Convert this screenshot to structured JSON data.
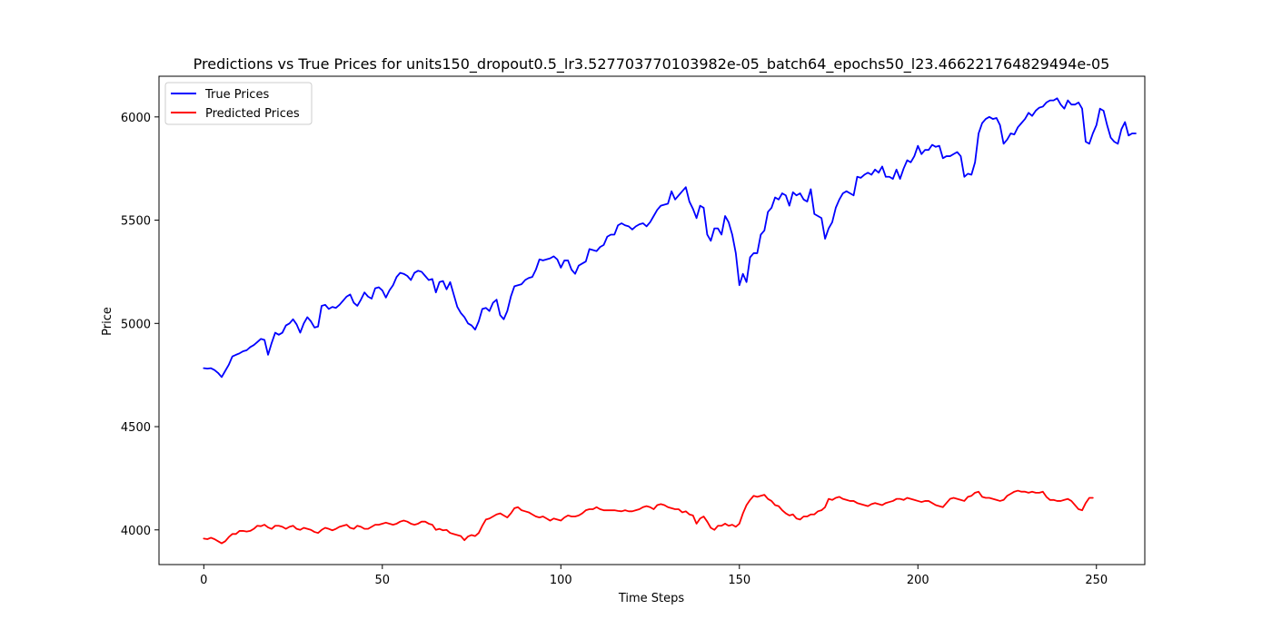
{
  "chart_data": {
    "type": "line",
    "title": "Predictions vs True Prices for units150_dropout0.5_lr3.527703770103982e-05_batch64_epochs50_l23.466221764829494e-05",
    "xlabel": "Time Steps",
    "ylabel": "Price",
    "xlim": [
      -12.55,
      263.55
    ],
    "ylim": [
      3832,
      6197
    ],
    "x_ticks": [
      0,
      50,
      100,
      150,
      200,
      250
    ],
    "y_ticks": [
      4000,
      4500,
      5000,
      5500,
      6000
    ],
    "grid": false,
    "legend_position": "upper left",
    "series": [
      {
        "name": "True Prices",
        "color": "#0000ff",
        "x_start": 0,
        "x_step": 1,
        "values": [
          4783,
          4781,
          4783,
          4774,
          4760,
          4740,
          4770,
          4800,
          4840,
          4848,
          4855,
          4865,
          4870,
          4885,
          4895,
          4910,
          4925,
          4920,
          4848,
          4905,
          4955,
          4945,
          4955,
          4990,
          5000,
          5020,
          4995,
          4955,
          5000,
          5030,
          5010,
          4980,
          4985,
          5085,
          5090,
          5070,
          5080,
          5075,
          5090,
          5110,
          5130,
          5140,
          5100,
          5085,
          5115,
          5150,
          5130,
          5120,
          5170,
          5175,
          5160,
          5125,
          5160,
          5185,
          5225,
          5245,
          5240,
          5230,
          5210,
          5245,
          5255,
          5250,
          5230,
          5210,
          5215,
          5150,
          5200,
          5205,
          5165,
          5200,
          5140,
          5080,
          5050,
          5030,
          5000,
          4990,
          4970,
          5010,
          5070,
          5075,
          5060,
          5100,
          5115,
          5040,
          5020,
          5060,
          5130,
          5180,
          5185,
          5190,
          5210,
          5220,
          5225,
          5260,
          5310,
          5305,
          5310,
          5315,
          5325,
          5310,
          5270,
          5305,
          5305,
          5260,
          5240,
          5280,
          5290,
          5300,
          5360,
          5355,
          5350,
          5370,
          5380,
          5420,
          5430,
          5430,
          5475,
          5485,
          5475,
          5470,
          5455,
          5470,
          5480,
          5485,
          5470,
          5490,
          5520,
          5550,
          5570,
          5575,
          5580,
          5640,
          5600,
          5620,
          5640,
          5660,
          5590,
          5555,
          5510,
          5570,
          5560,
          5430,
          5400,
          5460,
          5460,
          5430,
          5520,
          5490,
          5430,
          5340,
          5185,
          5240,
          5200,
          5320,
          5340,
          5340,
          5430,
          5450,
          5540,
          5560,
          5610,
          5600,
          5630,
          5620,
          5570,
          5635,
          5620,
          5630,
          5600,
          5590,
          5650,
          5530,
          5520,
          5510,
          5410,
          5460,
          5490,
          5560,
          5600,
          5630,
          5640,
          5630,
          5620,
          5710,
          5705,
          5720,
          5730,
          5720,
          5745,
          5730,
          5760,
          5710,
          5710,
          5700,
          5745,
          5700,
          5750,
          5790,
          5780,
          5810,
          5860,
          5820,
          5840,
          5840,
          5865,
          5855,
          5860,
          5800,
          5810,
          5810,
          5820,
          5830,
          5810,
          5710,
          5725,
          5720,
          5780,
          5920,
          5970,
          5990,
          6000,
          5990,
          5995,
          5960,
          5870,
          5890,
          5920,
          5915,
          5950,
          5970,
          5990,
          6020,
          6005,
          6030,
          6045,
          6050,
          6070,
          6080,
          6080,
          6090,
          6060,
          6040,
          6080,
          6060,
          6060,
          6070,
          6040,
          5880,
          5870,
          5920,
          5960,
          6040,
          6030,
          5960,
          5900,
          5880,
          5870,
          5940,
          5975,
          5910,
          5920,
          5920
        ]
      },
      {
        "name": "Predicted Prices",
        "color": "#ff0000",
        "x_start": 0,
        "x_step": 1,
        "values": [
          3958,
          3955,
          3962,
          3955,
          3945,
          3935,
          3945,
          3965,
          3980,
          3980,
          3995,
          3995,
          3992,
          3995,
          4005,
          4020,
          4018,
          4025,
          4012,
          4005,
          4020,
          4020,
          4015,
          4005,
          4015,
          4020,
          4005,
          4000,
          4010,
          4005,
          4000,
          3990,
          3985,
          4000,
          4010,
          4005,
          3998,
          4005,
          4015,
          4020,
          4025,
          4010,
          4005,
          4020,
          4015,
          4005,
          4005,
          4015,
          4025,
          4025,
          4030,
          4035,
          4030,
          4025,
          4030,
          4040,
          4045,
          4040,
          4030,
          4025,
          4030,
          4040,
          4040,
          4030,
          4025,
          4000,
          4005,
          3998,
          4000,
          3985,
          3980,
          3975,
          3970,
          3950,
          3968,
          3975,
          3970,
          3985,
          4020,
          4050,
          4055,
          4065,
          4075,
          4080,
          4070,
          4060,
          4080,
          4105,
          4110,
          4095,
          4090,
          4085,
          4075,
          4065,
          4060,
          4065,
          4055,
          4045,
          4055,
          4050,
          4045,
          4060,
          4070,
          4065,
          4065,
          4070,
          4080,
          4095,
          4100,
          4100,
          4110,
          4100,
          4095,
          4095,
          4095,
          4095,
          4092,
          4090,
          4095,
          4090,
          4090,
          4095,
          4100,
          4110,
          4115,
          4110,
          4100,
          4120,
          4125,
          4120,
          4110,
          4105,
          4100,
          4100,
          4085,
          4090,
          4075,
          4070,
          4030,
          4055,
          4065,
          4040,
          4010,
          4000,
          4020,
          4020,
          4030,
          4020,
          4025,
          4015,
          4030,
          4080,
          4120,
          4145,
          4165,
          4160,
          4165,
          4170,
          4150,
          4140,
          4120,
          4115,
          4095,
          4080,
          4070,
          4075,
          4055,
          4050,
          4065,
          4065,
          4075,
          4075,
          4090,
          4095,
          4110,
          4150,
          4145,
          4155,
          4160,
          4150,
          4145,
          4140,
          4140,
          4130,
          4125,
          4120,
          4115,
          4125,
          4130,
          4125,
          4120,
          4130,
          4135,
          4140,
          4150,
          4150,
          4145,
          4155,
          4150,
          4145,
          4140,
          4135,
          4140,
          4140,
          4130,
          4120,
          4115,
          4110,
          4130,
          4150,
          4155,
          4150,
          4145,
          4140,
          4160,
          4165,
          4180,
          4185,
          4160,
          4155,
          4155,
          4150,
          4145,
          4140,
          4145,
          4165,
          4175,
          4185,
          4190,
          4185,
          4185,
          4180,
          4185,
          4180,
          4180,
          4185,
          4160,
          4145,
          4145,
          4140,
          4140,
          4145,
          4150,
          4140,
          4120,
          4100,
          4095,
          4130,
          4155,
          4155
        ]
      }
    ]
  }
}
